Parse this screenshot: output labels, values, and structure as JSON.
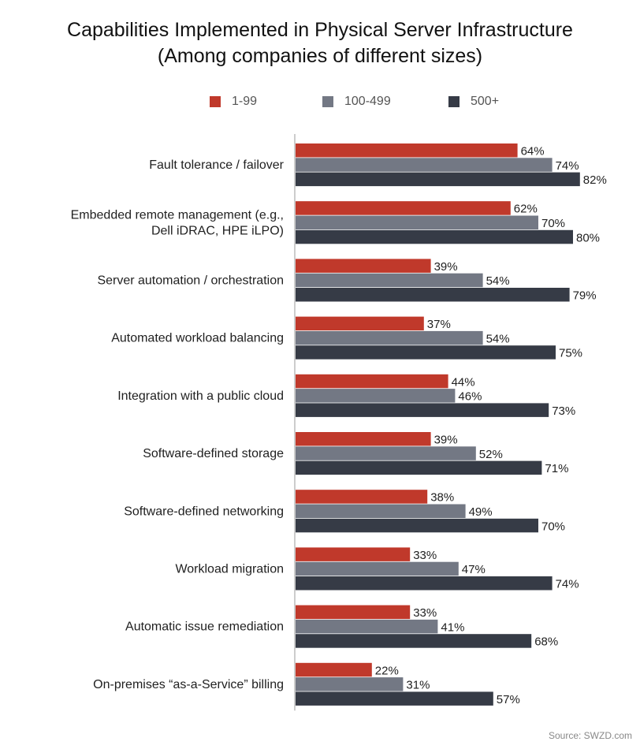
{
  "title_line1": "Capabilities Implemented in Physical Server Infrastructure",
  "title_line2": "(Among companies of different sizes)",
  "source": "Source: SWZD.com",
  "colors": {
    "s1": "#c0392b",
    "s2": "#737884",
    "s3": "#363b46",
    "axis": "#999999"
  },
  "chart_data": {
    "type": "bar",
    "orientation": "horizontal",
    "categories": [
      [
        "Fault tolerance / failover"
      ],
      [
        "Embedded remote management (e.g.,",
        "Dell iDRAC, HPE iLPO)"
      ],
      [
        "Server automation / orchestration"
      ],
      [
        "Automated workload balancing"
      ],
      [
        "Integration with a public cloud"
      ],
      [
        "Software-defined storage"
      ],
      [
        "Software-defined networking"
      ],
      [
        "Workload migration"
      ],
      [
        "Automatic issue remediation"
      ],
      [
        "On-premises “as-a-Service” billing"
      ]
    ],
    "series": [
      {
        "name": "1-99",
        "color": "#c0392b",
        "values": [
          64,
          62,
          39,
          37,
          44,
          39,
          38,
          33,
          33,
          22
        ]
      },
      {
        "name": "100-499",
        "color": "#737884",
        "values": [
          74,
          70,
          54,
          54,
          46,
          52,
          49,
          47,
          41,
          31
        ]
      },
      {
        "name": "500+",
        "color": "#363b46",
        "values": [
          82,
          80,
          79,
          75,
          73,
          71,
          70,
          74,
          68,
          57
        ]
      }
    ],
    "value_suffix": "%",
    "xlim": [
      0,
      100
    ],
    "grid": false,
    "legend_position": "top"
  }
}
